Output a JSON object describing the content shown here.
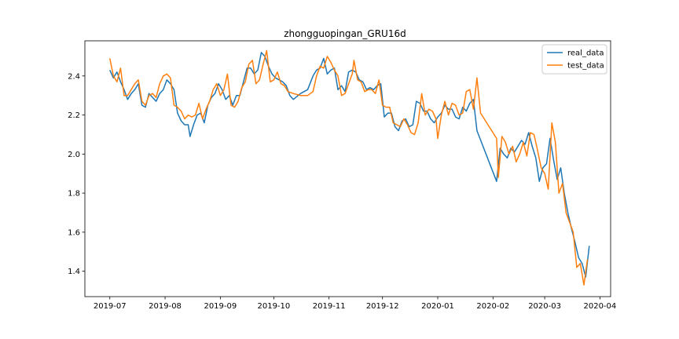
{
  "chart_data": {
    "type": "line",
    "title": "zhongguopingan_GRU16d",
    "xlabel": "",
    "ylabel": "",
    "x_axis_type": "date",
    "xlim": [
      "2019-06-17",
      "2020-04-07"
    ],
    "ylim": [
      1.27,
      2.58
    ],
    "x_ticks": [
      "2019-07-01",
      "2019-08-01",
      "2019-09-01",
      "2019-10-01",
      "2019-11-01",
      "2019-12-01",
      "2020-01-01",
      "2020-02-01",
      "2020-03-01",
      "2020-04-01"
    ],
    "x_tick_labels": [
      "2019-07",
      "2019-08",
      "2019-09",
      "2019-10",
      "2019-11",
      "2019-12",
      "2020-01",
      "2020-02",
      "2020-03",
      "2020-04"
    ],
    "y_ticks": [
      1.4,
      1.6,
      1.8,
      2.0,
      2.2,
      2.4
    ],
    "y_tick_labels": [
      "1.4",
      "1.6",
      "1.8",
      "2.0",
      "2.2",
      "2.4"
    ],
    "grid": false,
    "legend_position": "top-right",
    "series": [
      {
        "name": "real_data",
        "color": "#1f77b4",
        "points": [
          [
            "2019-07-01",
            2.43
          ],
          [
            "2019-07-03",
            2.39
          ],
          [
            "2019-07-05",
            2.42
          ],
          [
            "2019-07-07",
            2.37
          ],
          [
            "2019-07-09",
            2.33
          ],
          [
            "2019-07-11",
            2.28
          ],
          [
            "2019-07-13",
            2.31
          ],
          [
            "2019-07-15",
            2.33
          ],
          [
            "2019-07-17",
            2.36
          ],
          [
            "2019-07-19",
            2.25
          ],
          [
            "2019-07-21",
            2.24
          ],
          [
            "2019-07-23",
            2.31
          ],
          [
            "2019-07-25",
            2.29
          ],
          [
            "2019-07-27",
            2.27
          ],
          [
            "2019-07-29",
            2.31
          ],
          [
            "2019-07-31",
            2.33
          ],
          [
            "2019-08-02",
            2.38
          ],
          [
            "2019-08-04",
            2.36
          ],
          [
            "2019-08-06",
            2.33
          ],
          [
            "2019-08-08",
            2.21
          ],
          [
            "2019-08-10",
            2.17
          ],
          [
            "2019-08-12",
            2.15
          ],
          [
            "2019-08-14",
            2.15
          ],
          [
            "2019-08-15",
            2.09
          ],
          [
            "2019-08-17",
            2.15
          ],
          [
            "2019-08-19",
            2.2
          ],
          [
            "2019-08-21",
            2.21
          ],
          [
            "2019-08-23",
            2.16
          ],
          [
            "2019-08-25",
            2.25
          ],
          [
            "2019-08-27",
            2.29
          ],
          [
            "2019-08-29",
            2.31
          ],
          [
            "2019-08-31",
            2.36
          ],
          [
            "2019-09-02",
            2.33
          ],
          [
            "2019-09-04",
            2.28
          ],
          [
            "2019-09-06",
            2.3
          ],
          [
            "2019-09-08",
            2.25
          ],
          [
            "2019-09-10",
            2.3
          ],
          [
            "2019-09-12",
            2.3
          ],
          [
            "2019-09-14",
            2.37
          ],
          [
            "2019-09-16",
            2.44
          ],
          [
            "2019-09-18",
            2.44
          ],
          [
            "2019-09-20",
            2.41
          ],
          [
            "2019-09-22",
            2.43
          ],
          [
            "2019-09-24",
            2.52
          ],
          [
            "2019-09-26",
            2.5
          ],
          [
            "2019-09-28",
            2.45
          ],
          [
            "2019-09-30",
            2.41
          ],
          [
            "2019-10-02",
            2.39
          ],
          [
            "2019-10-04",
            2.38
          ],
          [
            "2019-10-06",
            2.37
          ],
          [
            "2019-10-08",
            2.35
          ],
          [
            "2019-10-10",
            2.3
          ],
          [
            "2019-10-12",
            2.28
          ],
          [
            "2019-10-16",
            2.31
          ],
          [
            "2019-10-20",
            2.33
          ],
          [
            "2019-10-23",
            2.4
          ],
          [
            "2019-10-25",
            2.43
          ],
          [
            "2019-10-27",
            2.44
          ],
          [
            "2019-10-29",
            2.49
          ],
          [
            "2019-10-31",
            2.41
          ],
          [
            "2019-11-02",
            2.43
          ],
          [
            "2019-11-04",
            2.44
          ],
          [
            "2019-11-06",
            2.33
          ],
          [
            "2019-11-08",
            2.35
          ],
          [
            "2019-11-10",
            2.32
          ],
          [
            "2019-11-12",
            2.42
          ],
          [
            "2019-11-14",
            2.43
          ],
          [
            "2019-11-16",
            2.42
          ],
          [
            "2019-11-18",
            2.38
          ],
          [
            "2019-11-20",
            2.37
          ],
          [
            "2019-11-22",
            2.33
          ],
          [
            "2019-11-24",
            2.34
          ],
          [
            "2019-11-26",
            2.33
          ],
          [
            "2019-11-28",
            2.35
          ],
          [
            "2019-11-30",
            2.36
          ],
          [
            "2019-12-02",
            2.19
          ],
          [
            "2019-12-04",
            2.21
          ],
          [
            "2019-12-06",
            2.21
          ],
          [
            "2019-12-08",
            2.14
          ],
          [
            "2019-12-10",
            2.12
          ],
          [
            "2019-12-12",
            2.17
          ],
          [
            "2019-12-14",
            2.18
          ],
          [
            "2019-12-16",
            2.14
          ],
          [
            "2019-12-18",
            2.15
          ],
          [
            "2019-12-20",
            2.27
          ],
          [
            "2019-12-22",
            2.26
          ],
          [
            "2019-12-24",
            2.22
          ],
          [
            "2019-12-26",
            2.22
          ],
          [
            "2019-12-28",
            2.18
          ],
          [
            "2019-12-30",
            2.16
          ],
          [
            "2020-01-01",
            2.19
          ],
          [
            "2020-01-03",
            2.21
          ],
          [
            "2020-01-05",
            2.25
          ],
          [
            "2020-01-07",
            2.23
          ],
          [
            "2020-01-09",
            2.23
          ],
          [
            "2020-01-11",
            2.19
          ],
          [
            "2020-01-13",
            2.18
          ],
          [
            "2020-01-15",
            2.24
          ],
          [
            "2020-01-17",
            2.22
          ],
          [
            "2020-01-19",
            2.26
          ],
          [
            "2020-01-21",
            2.28
          ],
          [
            "2020-01-23",
            2.12
          ],
          [
            "2020-02-03",
            1.86
          ],
          [
            "2020-02-05",
            2.03
          ],
          [
            "2020-02-07",
            2.0
          ],
          [
            "2020-02-09",
            1.98
          ],
          [
            "2020-02-11",
            2.03
          ],
          [
            "2020-02-13",
            2.01
          ],
          [
            "2020-02-15",
            2.04
          ],
          [
            "2020-02-17",
            2.07
          ],
          [
            "2020-02-19",
            2.05
          ],
          [
            "2020-02-21",
            2.11
          ],
          [
            "2020-02-23",
            2.04
          ],
          [
            "2020-02-25",
            1.98
          ],
          [
            "2020-02-27",
            1.86
          ],
          [
            "2020-02-29",
            1.93
          ],
          [
            "2020-03-02",
            1.95
          ],
          [
            "2020-03-04",
            2.08
          ],
          [
            "2020-03-06",
            1.97
          ],
          [
            "2020-03-08",
            1.87
          ],
          [
            "2020-03-10",
            1.93
          ],
          [
            "2020-03-12",
            1.8
          ],
          [
            "2020-03-14",
            1.7
          ],
          [
            "2020-03-16",
            1.62
          ],
          [
            "2020-03-18",
            1.55
          ],
          [
            "2020-03-20",
            1.47
          ],
          [
            "2020-03-22",
            1.44
          ],
          [
            "2020-03-24",
            1.37
          ],
          [
            "2020-03-26",
            1.53
          ]
        ]
      },
      {
        "name": "test_data",
        "color": "#ff7f0e",
        "points": [
          [
            "2019-07-01",
            2.49
          ],
          [
            "2019-07-03",
            2.4
          ],
          [
            "2019-07-05",
            2.37
          ],
          [
            "2019-07-07",
            2.44
          ],
          [
            "2019-07-09",
            2.3
          ],
          [
            "2019-07-11",
            2.3
          ],
          [
            "2019-07-13",
            2.33
          ],
          [
            "2019-07-15",
            2.36
          ],
          [
            "2019-07-17",
            2.38
          ],
          [
            "2019-07-19",
            2.27
          ],
          [
            "2019-07-21",
            2.25
          ],
          [
            "2019-07-23",
            2.3
          ],
          [
            "2019-07-25",
            2.31
          ],
          [
            "2019-07-27",
            2.29
          ],
          [
            "2019-07-29",
            2.36
          ],
          [
            "2019-07-31",
            2.4
          ],
          [
            "2019-08-02",
            2.41
          ],
          [
            "2019-08-04",
            2.39
          ],
          [
            "2019-08-06",
            2.25
          ],
          [
            "2019-08-08",
            2.24
          ],
          [
            "2019-08-10",
            2.22
          ],
          [
            "2019-08-12",
            2.18
          ],
          [
            "2019-08-14",
            2.2
          ],
          [
            "2019-08-16",
            2.19
          ],
          [
            "2019-08-18",
            2.2
          ],
          [
            "2019-08-20",
            2.26
          ],
          [
            "2019-08-22",
            2.18
          ],
          [
            "2019-08-24",
            2.23
          ],
          [
            "2019-08-26",
            2.27
          ],
          [
            "2019-08-28",
            2.33
          ],
          [
            "2019-08-30",
            2.36
          ],
          [
            "2019-09-01",
            2.3
          ],
          [
            "2019-09-03",
            2.33
          ],
          [
            "2019-09-05",
            2.41
          ],
          [
            "2019-09-07",
            2.25
          ],
          [
            "2019-09-09",
            2.24
          ],
          [
            "2019-09-11",
            2.27
          ],
          [
            "2019-09-13",
            2.34
          ],
          [
            "2019-09-15",
            2.37
          ],
          [
            "2019-09-17",
            2.46
          ],
          [
            "2019-09-19",
            2.48
          ],
          [
            "2019-09-21",
            2.36
          ],
          [
            "2019-09-23",
            2.38
          ],
          [
            "2019-09-25",
            2.46
          ],
          [
            "2019-09-27",
            2.53
          ],
          [
            "2019-09-29",
            2.37
          ],
          [
            "2019-10-01",
            2.38
          ],
          [
            "2019-10-03",
            2.42
          ],
          [
            "2019-10-05",
            2.36
          ],
          [
            "2019-10-07",
            2.35
          ],
          [
            "2019-10-09",
            2.32
          ],
          [
            "2019-10-12",
            2.31
          ],
          [
            "2019-10-16",
            2.3
          ],
          [
            "2019-10-20",
            2.3
          ],
          [
            "2019-10-23",
            2.32
          ],
          [
            "2019-10-25",
            2.4
          ],
          [
            "2019-10-27",
            2.45
          ],
          [
            "2019-10-29",
            2.44
          ],
          [
            "2019-10-31",
            2.5
          ],
          [
            "2019-11-02",
            2.47
          ],
          [
            "2019-11-04",
            2.43
          ],
          [
            "2019-11-06",
            2.4
          ],
          [
            "2019-11-08",
            2.3
          ],
          [
            "2019-11-10",
            2.31
          ],
          [
            "2019-11-12",
            2.36
          ],
          [
            "2019-11-14",
            2.41
          ],
          [
            "2019-11-15",
            2.48
          ],
          [
            "2019-11-17",
            2.38
          ],
          [
            "2019-11-19",
            2.37
          ],
          [
            "2019-11-21",
            2.32
          ],
          [
            "2019-11-23",
            2.33
          ],
          [
            "2019-11-25",
            2.33
          ],
          [
            "2019-11-27",
            2.31
          ],
          [
            "2019-11-29",
            2.38
          ],
          [
            "2019-12-01",
            2.25
          ],
          [
            "2019-12-03",
            2.24
          ],
          [
            "2019-12-05",
            2.24
          ],
          [
            "2019-12-07",
            2.16
          ],
          [
            "2019-12-09",
            2.15
          ],
          [
            "2019-12-11",
            2.14
          ],
          [
            "2019-12-13",
            2.18
          ],
          [
            "2019-12-15",
            2.15
          ],
          [
            "2019-12-17",
            2.11
          ],
          [
            "2019-12-19",
            2.1
          ],
          [
            "2019-12-21",
            2.16
          ],
          [
            "2019-12-23",
            2.31
          ],
          [
            "2019-12-25",
            2.2
          ],
          [
            "2019-12-27",
            2.23
          ],
          [
            "2019-12-29",
            2.22
          ],
          [
            "2019-12-31",
            2.18
          ],
          [
            "2020-01-01",
            2.08
          ],
          [
            "2020-01-03",
            2.2
          ],
          [
            "2020-01-05",
            2.27
          ],
          [
            "2020-01-07",
            2.2
          ],
          [
            "2020-01-09",
            2.26
          ],
          [
            "2020-01-11",
            2.25
          ],
          [
            "2020-01-13",
            2.2
          ],
          [
            "2020-01-15",
            2.21
          ],
          [
            "2020-01-17",
            2.32
          ],
          [
            "2020-01-19",
            2.33
          ],
          [
            "2020-01-21",
            2.23
          ],
          [
            "2020-01-23",
            2.39
          ],
          [
            "2020-01-25",
            2.21
          ],
          [
            "2020-02-03",
            2.08
          ],
          [
            "2020-02-04",
            1.88
          ],
          [
            "2020-02-06",
            2.09
          ],
          [
            "2020-02-08",
            2.06
          ],
          [
            "2020-02-10",
            2.0
          ],
          [
            "2020-02-12",
            2.04
          ],
          [
            "2020-02-14",
            1.96
          ],
          [
            "2020-02-16",
            2.0
          ],
          [
            "2020-02-18",
            2.06
          ],
          [
            "2020-02-20",
            1.99
          ],
          [
            "2020-02-22",
            2.11
          ],
          [
            "2020-02-24",
            2.1
          ],
          [
            "2020-02-26",
            2.02
          ],
          [
            "2020-02-28",
            1.93
          ],
          [
            "2020-03-01",
            1.9
          ],
          [
            "2020-03-03",
            1.82
          ],
          [
            "2020-03-05",
            2.16
          ],
          [
            "2020-03-07",
            2.06
          ],
          [
            "2020-03-09",
            1.8
          ],
          [
            "2020-03-11",
            1.85
          ],
          [
            "2020-03-13",
            1.7
          ],
          [
            "2020-03-15",
            1.65
          ],
          [
            "2020-03-17",
            1.6
          ],
          [
            "2020-03-19",
            1.42
          ],
          [
            "2020-03-21",
            1.44
          ],
          [
            "2020-03-23",
            1.33
          ],
          [
            "2020-03-25",
            1.46
          ]
        ]
      }
    ]
  }
}
